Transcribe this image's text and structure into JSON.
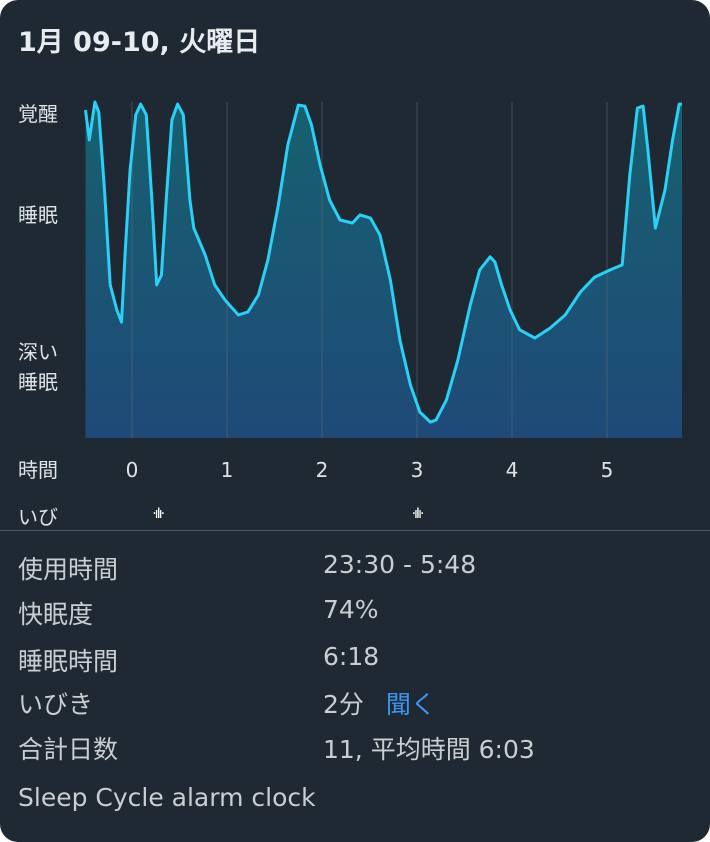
{
  "header": {
    "title": "1月 09-10, 火曜日"
  },
  "colors": {
    "background": "#1f2933",
    "line": "#2ad0f5",
    "fill_top": "#17606f",
    "fill_bottom": "#1f4a78",
    "link": "#3d95f0"
  },
  "chart_data": {
    "type": "area",
    "ylabels": [
      "覚醒",
      "睡眠",
      "深い\n睡眠"
    ],
    "ylabel_awake": "覚醒",
    "ylabel_sleep": "睡眠",
    "ylabel_deep": "深い",
    "ylabel_deep2": "睡眠",
    "xlabel": "時間",
    "xticks": [
      "0",
      "1",
      "2",
      "3",
      "4",
      "5"
    ],
    "xlim": [
      -0.49,
      5.79
    ],
    "ylim": [
      0,
      100
    ],
    "grid": "vertical",
    "x": [
      -0.49,
      -0.45,
      -0.39,
      -0.35,
      -0.29,
      -0.23,
      -0.16,
      -0.11,
      -0.07,
      -0.02,
      0.04,
      0.09,
      0.15,
      0.21,
      0.26,
      0.31,
      0.36,
      0.42,
      0.48,
      0.54,
      0.61,
      0.65,
      0.77,
      0.87,
      0.98,
      1.12,
      1.22,
      1.33,
      1.43,
      1.54,
      1.64,
      1.75,
      1.82,
      1.89,
      1.98,
      2.08,
      2.19,
      2.32,
      2.4,
      2.51,
      2.61,
      2.72,
      2.82,
      2.93,
      3.03,
      3.14,
      3.2,
      3.31,
      3.43,
      3.56,
      3.66,
      3.77,
      3.82,
      3.89,
      3.98,
      4.08,
      4.24,
      4.4,
      4.56,
      4.72,
      4.87,
      5.03,
      5.16,
      5.24,
      5.32,
      5.38,
      5.43,
      5.51,
      5.61,
      5.69,
      5.76,
      5.79
    ],
    "y": [
      97.0,
      88.2,
      99.4,
      96.4,
      73.4,
      45.3,
      37.9,
      34.3,
      55.6,
      79.3,
      95.6,
      98.8,
      95.6,
      70.4,
      45.3,
      48.2,
      70.4,
      94.1,
      98.8,
      95.6,
      70.4,
      62.1,
      54.1,
      45.3,
      40.8,
      36.4,
      37.3,
      42.3,
      52.7,
      68.9,
      86.7,
      98.5,
      98.2,
      92.6,
      80.8,
      70.4,
      64.5,
      63.6,
      66.0,
      65.1,
      60.1,
      46.7,
      29.0,
      15.7,
      7.7,
      4.7,
      5.3,
      11.2,
      23.1,
      39.3,
      49.7,
      53.6,
      52.1,
      45.3,
      37.9,
      32.0,
      29.6,
      32.5,
      36.4,
      43.2,
      47.6,
      49.7,
      51.2,
      77.8,
      97.6,
      98.2,
      85.2,
      62.1,
      73.4,
      88.2,
      98.8,
      98.8
    ]
  },
  "snore": {
    "label": "いび",
    "icon": "waveform-icon",
    "events_hours": [
      0.27,
      3.0
    ],
    "glyph": "·ıIı·"
  },
  "stats": [
    {
      "label": "使用時間",
      "value": "23:30 - 5:48"
    },
    {
      "label": "快眠度",
      "value": "74%"
    },
    {
      "label": "睡眠時間",
      "value": "6:18"
    },
    {
      "label": "いびき",
      "value": "2分",
      "link": "聞く"
    },
    {
      "label": "合計日数",
      "value": "11, 平均時間 6:03"
    }
  ],
  "footer": "Sleep Cycle alarm clock"
}
